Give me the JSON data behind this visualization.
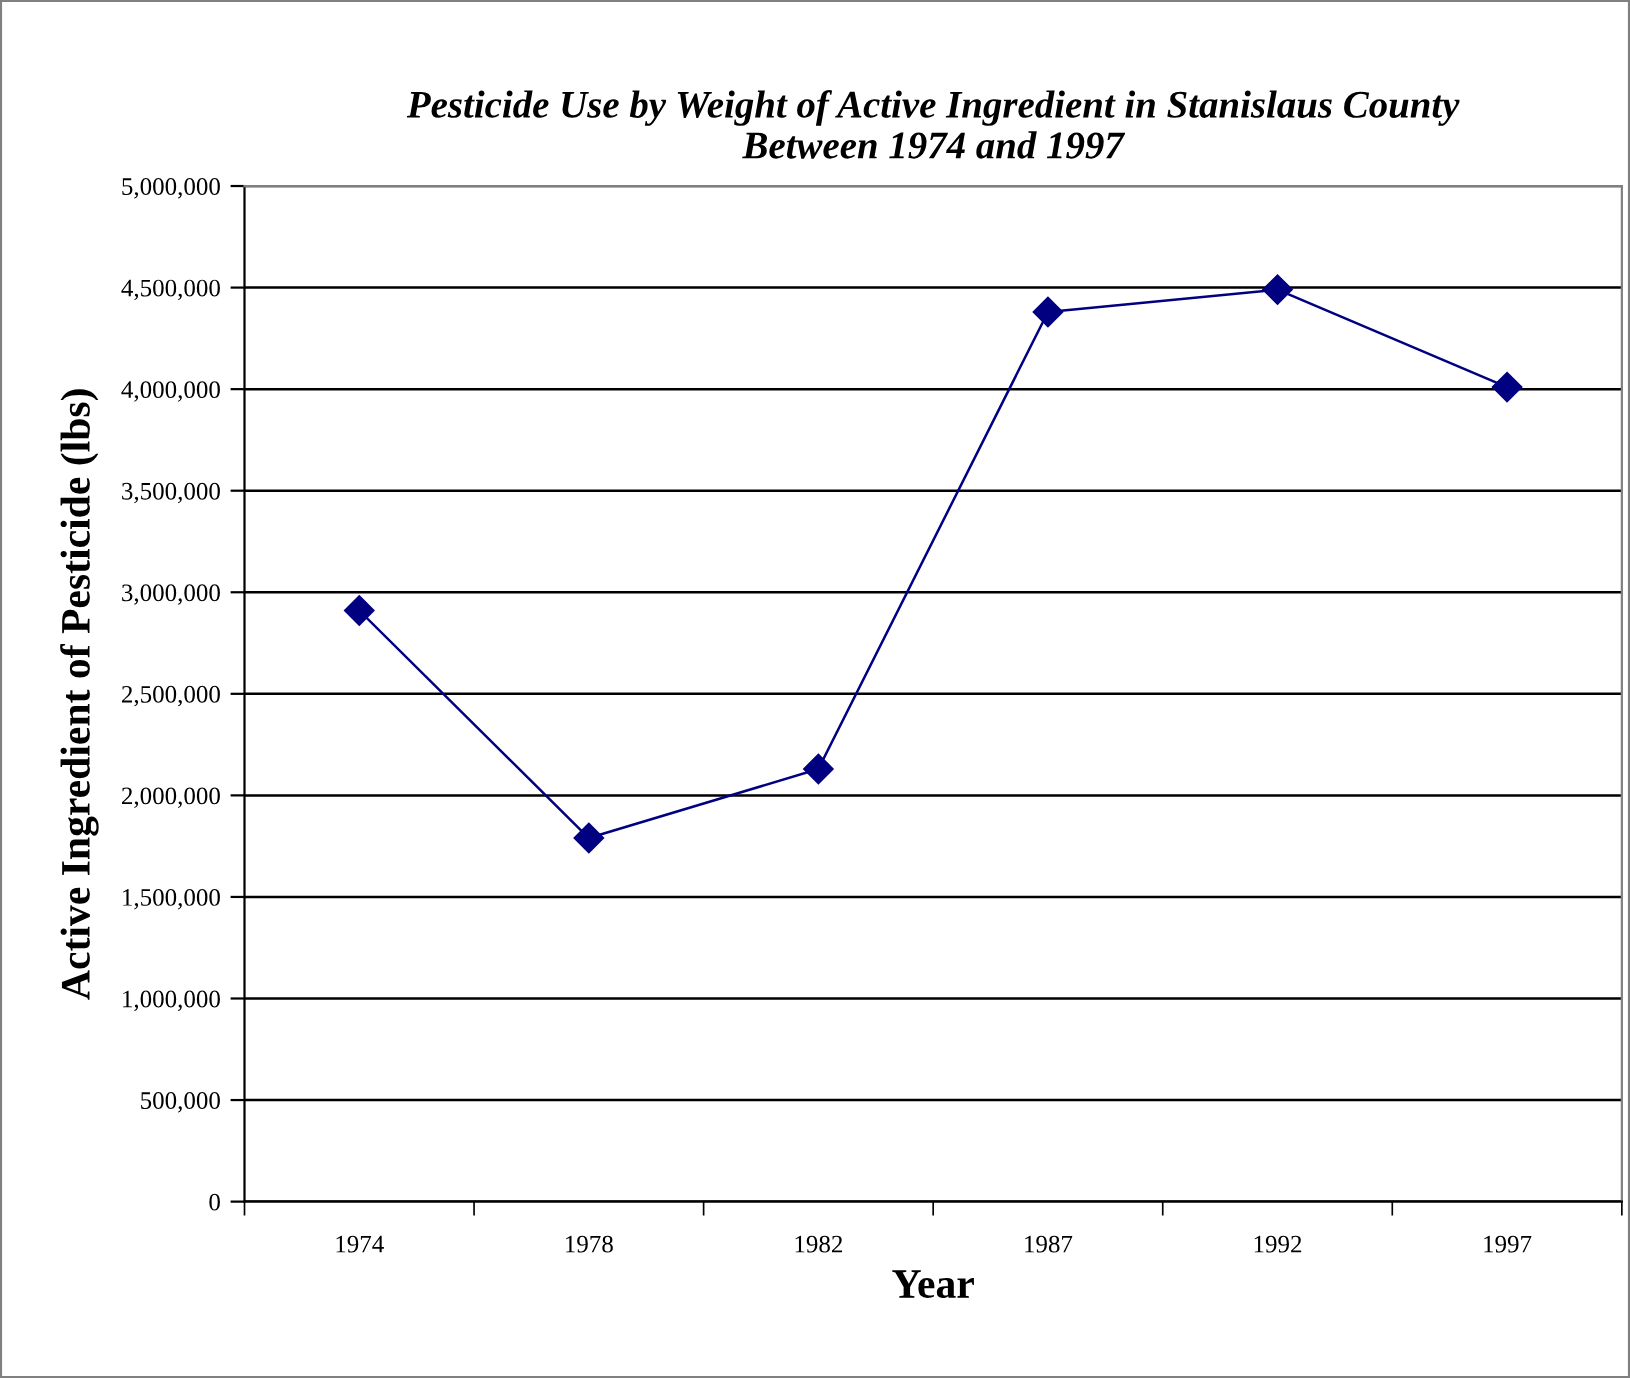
{
  "chart_data": {
    "type": "line",
    "title": "Pesticide Use by Weight of Active Ingredient in Stanislaus County\nBetween 1974 and 1997",
    "xlabel": "Year",
    "ylabel": "Active Ingredient of Pesticide (lbs)",
    "categories": [
      "1974",
      "1978",
      "1982",
      "1987",
      "1992",
      "1997"
    ],
    "series": [
      {
        "color": "#000080",
        "values": [
          2910000,
          1790000,
          2130000,
          4380000,
          4490000,
          4010000
        ]
      }
    ],
    "ylim": [
      0,
      5000000
    ],
    "yticks": [
      {
        "value": 0,
        "label": "0"
      },
      {
        "value": 500000,
        "label": "500,000"
      },
      {
        "value": 1000000,
        "label": "1,000,000"
      },
      {
        "value": 1500000,
        "label": "1,500,000"
      },
      {
        "value": 2000000,
        "label": "2,000,000"
      },
      {
        "value": 2500000,
        "label": "2,500,000"
      },
      {
        "value": 3000000,
        "label": "3,000,000"
      },
      {
        "value": 3500000,
        "label": "3,500,000"
      },
      {
        "value": 4000000,
        "label": "4,000,000"
      },
      {
        "value": 4500000,
        "label": "4,500,000"
      },
      {
        "value": 5000000,
        "label": "5,000,000"
      }
    ],
    "grid": "y",
    "marker": "diamond",
    "line_style": "solid"
  }
}
